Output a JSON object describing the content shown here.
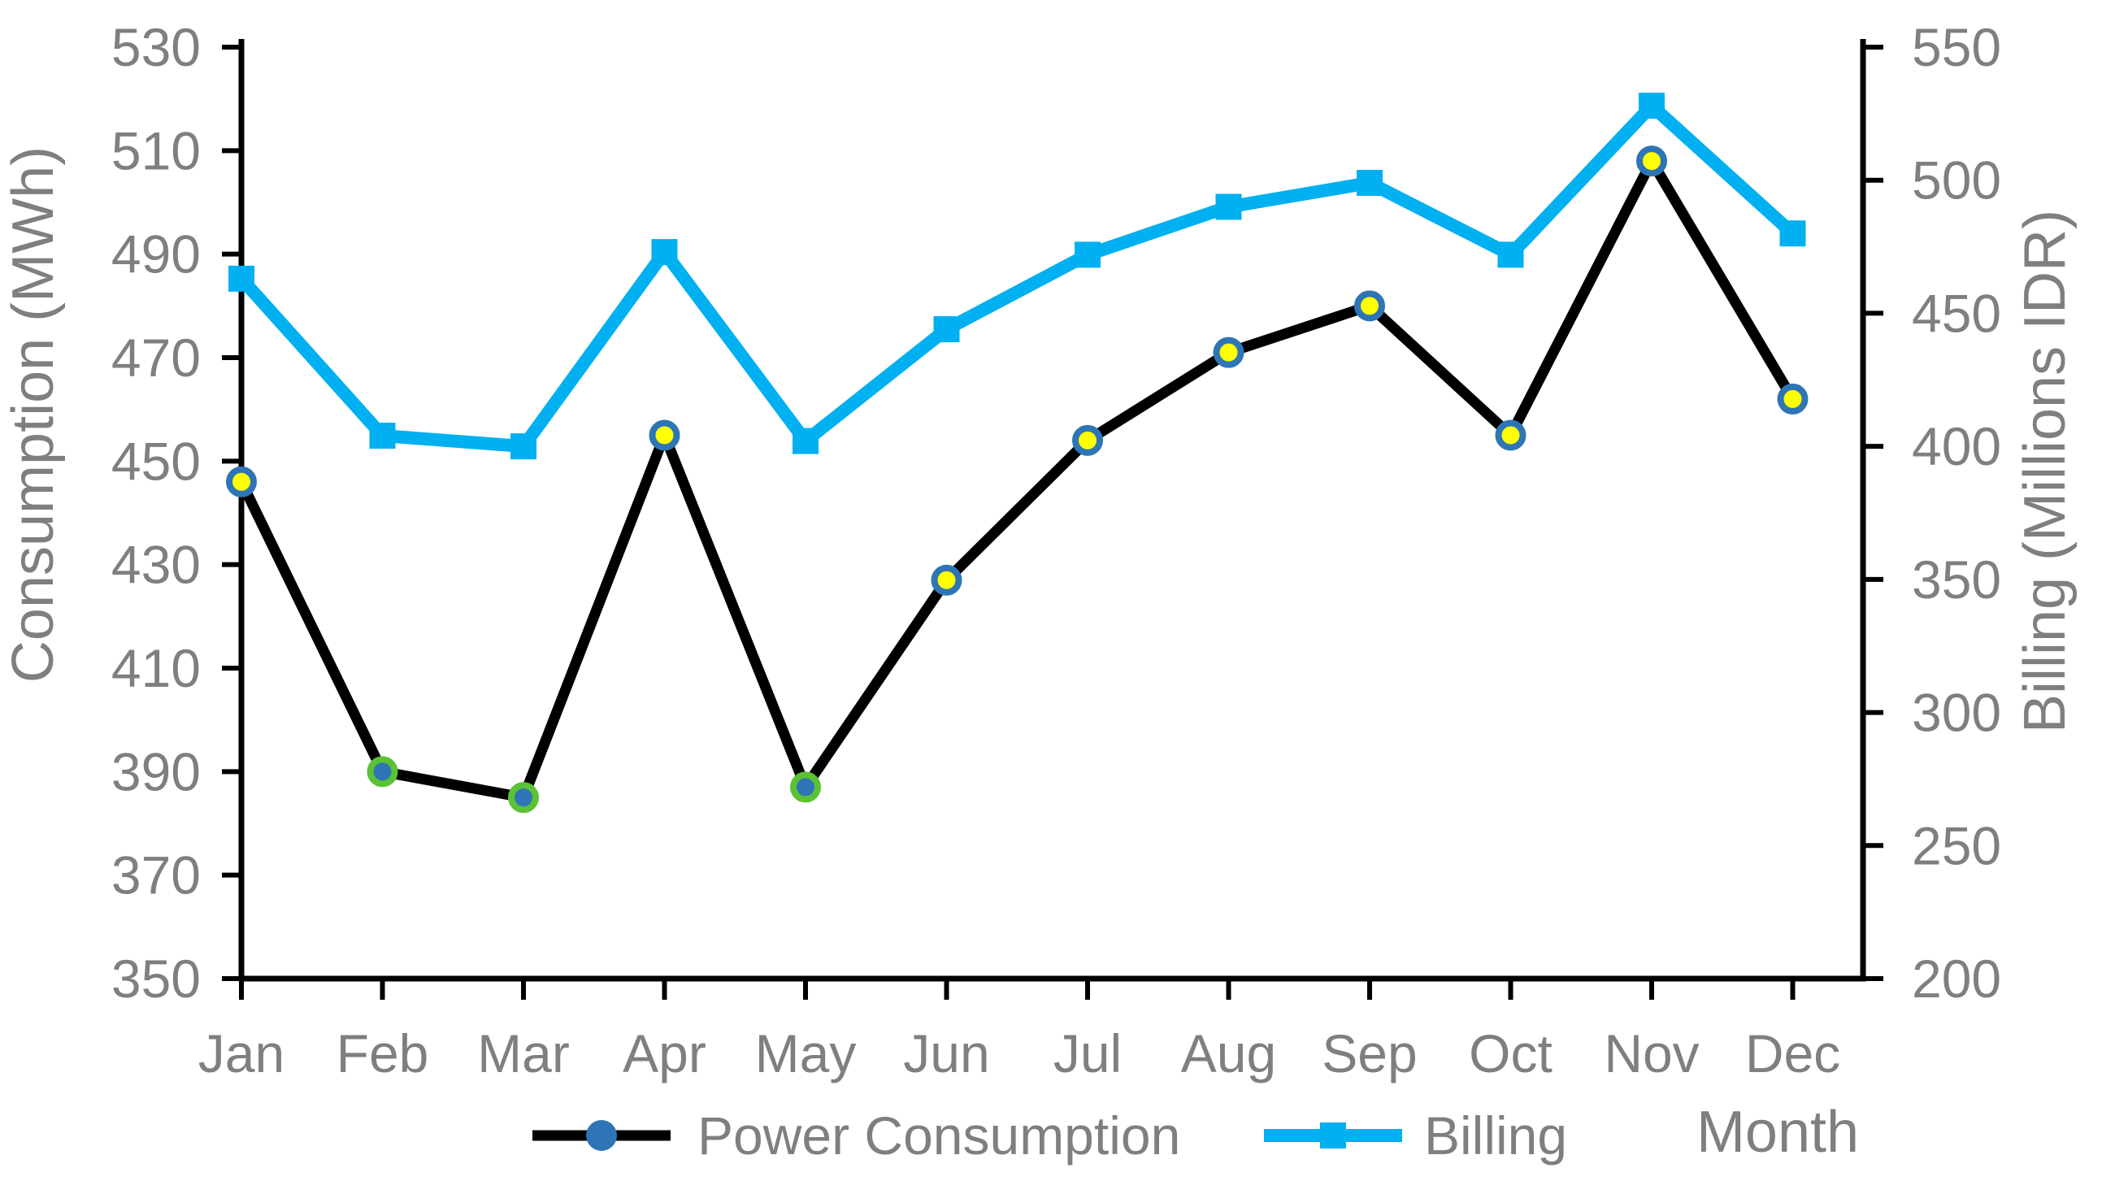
{
  "chart_data": {
    "type": "line",
    "title": "",
    "categories": [
      "Jan",
      "Feb",
      "Mar",
      "Apr",
      "May",
      "Jun",
      "Jul",
      "Aug",
      "Sep",
      "Oct",
      "Nov",
      "Dec"
    ],
    "xlabel": "Month",
    "axes": {
      "left": {
        "label": "Consumption (MWh)",
        "min": 350,
        "max": 530,
        "step": 20,
        "ticks": [
          530,
          510,
          490,
          470,
          450,
          430,
          410,
          390,
          370,
          350
        ]
      },
      "right": {
        "label": "Billing (Millions IDR)",
        "min": 200,
        "max": 550,
        "step": 50,
        "ticks": [
          550,
          500,
          450,
          400,
          350,
          300,
          250,
          200
        ]
      }
    },
    "series": [
      {
        "name": "Power Consumption",
        "axis": "left",
        "color": "#000000",
        "line_width": 13,
        "marker": "circle",
        "marker_ring": "#2E75B6",
        "marker_fill": "#FFFF00",
        "marker_overrides": {
          "Feb": {
            "ring": "#5BC236",
            "fill": "#2E75B6"
          },
          "Mar": {
            "ring": "#5BC236",
            "fill": "#2E75B6"
          },
          "May": {
            "ring": "#5BC236",
            "fill": "#2E75B6"
          }
        },
        "values": [
          446,
          390,
          385,
          455,
          387,
          427,
          454,
          471,
          480,
          455,
          508,
          462
        ]
      },
      {
        "name": "Billing",
        "axis": "right",
        "color": "#00B0F0",
        "line_width": 16,
        "marker": "square",
        "marker_fill": "#00B0F0",
        "values": [
          463,
          404,
          400,
          473,
          402,
          444,
          472,
          490,
          499,
          472,
          528,
          480
        ]
      }
    ],
    "legend": {
      "position": "bottom",
      "entries": [
        "Power Consumption",
        "Billing"
      ]
    },
    "grid": "off",
    "text_color": "#7F7F7F",
    "axis_color": "#000000",
    "background": "#FFFFFF"
  }
}
